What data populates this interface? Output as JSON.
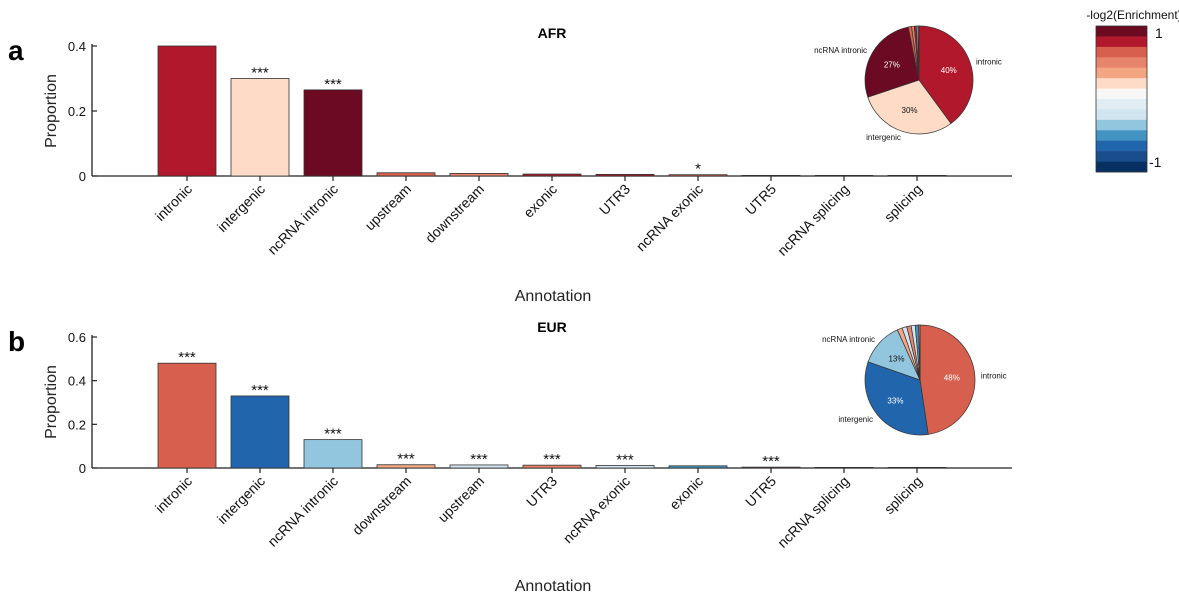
{
  "panels": [
    {
      "letter": "a"
    },
    {
      "letter": "b"
    }
  ],
  "colorbar": {
    "title": "-log2(Enrichment)",
    "max_label": "1",
    "min_label": "-1",
    "colors": [
      "#6b0a22",
      "#b2182b",
      "#d6604d",
      "#e8846b",
      "#f4a582",
      "#fddbc7",
      "#f7f7f7",
      "#e0edf5",
      "#d1e5f0",
      "#92c5de",
      "#4393c3",
      "#2166ac",
      "#1a4d8c",
      "#053061"
    ]
  },
  "chart_data": [
    {
      "type": "bar",
      "title": "AFR",
      "xlabel": "Annotation",
      "ylabel": "Proportion",
      "ylim": [
        0,
        0.4
      ],
      "yticks": [
        "0",
        "0.2",
        "0.4"
      ],
      "categories": [
        "intronic",
        "intergenic",
        "ncRNA intronic",
        "upstream",
        "downstream",
        "exonic",
        "UTR3",
        "ncRNA exonic",
        "UTR5",
        "ncRNA splicing",
        "splicing"
      ],
      "values": [
        0.4,
        0.3,
        0.265,
        0.01,
        0.008,
        0.006,
        0.005,
        0.004,
        0.001,
        0.0005,
        0.0003
      ],
      "colors": [
        "#b2182b",
        "#fddbc7",
        "#6b0a22",
        "#d6604d",
        "#e8846b",
        "#b2182b",
        "#b2182b",
        "#d6604d",
        "#e8846b",
        "#d6604d",
        "#d6604d"
      ],
      "significance": [
        "",
        "***",
        "***",
        "",
        "",
        "",
        "",
        "*",
        "",
        "",
        ""
      ],
      "pie": {
        "labels": [
          "intronic",
          "intergenic",
          "ncRNA intronic"
        ],
        "percent_labels": [
          "40%",
          "30%",
          "27%"
        ],
        "values": [
          40,
          30,
          27,
          1,
          0.8,
          0.6,
          0.5,
          0.3
        ],
        "colors": [
          "#b2182b",
          "#fddbc7",
          "#6b0a22",
          "#d6604d",
          "#e8846b",
          "#b2182b",
          "#92c5de",
          "#d6604d"
        ],
        "label_colors": [
          "#ffffff",
          "#111111",
          "#ffffff"
        ]
      }
    },
    {
      "type": "bar",
      "title": "EUR",
      "xlabel": "Annotation",
      "ylabel": "Proportion",
      "ylim": [
        0,
        0.6
      ],
      "yticks": [
        "0",
        "0.2",
        "0.4",
        "0.6"
      ],
      "categories": [
        "intronic",
        "intergenic",
        "ncRNA intronic",
        "downstream",
        "upstream",
        "UTR3",
        "ncRNA exonic",
        "exonic",
        "UTR5",
        "ncRNA splicing",
        "splicing"
      ],
      "values": [
        0.48,
        0.33,
        0.13,
        0.015,
        0.014,
        0.013,
        0.012,
        0.01,
        0.004,
        0.0005,
        0.0003
      ],
      "colors": [
        "#d6604d",
        "#2166ac",
        "#92c5de",
        "#f4a582",
        "#d1e5f0",
        "#e8846b",
        "#d1e5f0",
        "#4393c3",
        "#e8846b",
        "#d6604d",
        "#d6604d"
      ],
      "significance": [
        "***",
        "***",
        "***",
        "***",
        "***",
        "***",
        "***",
        "",
        "***",
        "",
        ""
      ],
      "pie": {
        "labels": [
          "intronic",
          "intergenic",
          "ncRNA intronic"
        ],
        "percent_labels": [
          "48%",
          "33%",
          "13%"
        ],
        "values": [
          48,
          33,
          13,
          1.5,
          1.4,
          1.3,
          1.2,
          1.0,
          0.4
        ],
        "colors": [
          "#d6604d",
          "#2166ac",
          "#92c5de",
          "#f4a582",
          "#d1e5f0",
          "#e8846b",
          "#d1e5f0",
          "#4393c3",
          "#e8846b"
        ],
        "label_colors": [
          "#ffffff",
          "#ffffff",
          "#111111"
        ]
      }
    }
  ]
}
